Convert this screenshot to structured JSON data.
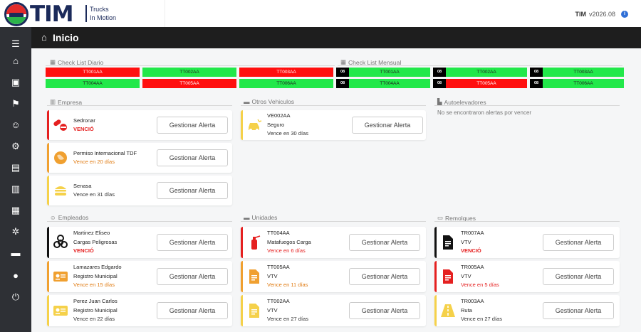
{
  "brand": {
    "logo_text": "TIM",
    "sub_line1": "Trucks",
    "sub_line2": "In Motion"
  },
  "topbar": {
    "user": "TIM",
    "version": "v2026.08",
    "info_icon": "i"
  },
  "header": {
    "title": "Inicio",
    "home_icon": "home-icon"
  },
  "sidebar": {
    "icons": [
      "menu-icon",
      "home-icon",
      "bus-icon",
      "flag-icon",
      "users-icon",
      "user-cog-icon",
      "file-icon",
      "basket-icon",
      "boxes-icon",
      "cogs-icon",
      "folder-icon",
      "user-icon",
      "power-icon"
    ],
    "glyphs": [
      "☰",
      "⌂",
      "▣",
      "⚑",
      "☺",
      "⚙",
      "▤",
      "▥",
      "▦",
      "✲",
      "▬",
      "●",
      "⏻"
    ]
  },
  "checklist_diario": {
    "label": "Check List Diario",
    "items": [
      {
        "code": "TT001AA",
        "status": "red"
      },
      {
        "code": "TT002AA",
        "status": "green"
      },
      {
        "code": "TT003AA",
        "status": "red"
      },
      {
        "code": "TT004AA",
        "status": "green"
      },
      {
        "code": "TT005AA",
        "status": "red"
      },
      {
        "code": "TT006AA",
        "status": "green"
      }
    ]
  },
  "checklist_mensual": {
    "label": "Check List Mensual",
    "items": [
      {
        "num": "08",
        "code": "TT001AA",
        "status": "green"
      },
      {
        "num": "08",
        "code": "TT002AA",
        "status": "green"
      },
      {
        "num": "08",
        "code": "TT003AA",
        "status": "green"
      },
      {
        "num": "08",
        "code": "TT004AA",
        "status": "green"
      },
      {
        "num": "08",
        "code": "TT005AA",
        "status": "red"
      },
      {
        "num": "08",
        "code": "TT006AA",
        "status": "green"
      }
    ]
  },
  "sections": {
    "empresa": "Empresa",
    "otros": "Otros Vehiculos",
    "autoelevadores": "Autoelevadores",
    "autoelevadores_empty": "No se encontraron alertas por vencer",
    "empleados": "Empleados",
    "unidades": "Unidades",
    "remolques": "Remolques"
  },
  "button_label": "Gestionar Alerta",
  "empresa_cards": [
    {
      "line1": "Sedronar",
      "line2": "",
      "status": "VENCIÓ",
      "status_type": "red",
      "icon": "pill-icon",
      "accent": "#e52020"
    },
    {
      "line1": "Permiso Internacional TDF",
      "line2": "",
      "status": "Vence en 20 días",
      "status_type": "orange",
      "icon": "globe-icon",
      "accent": "#f0a030"
    },
    {
      "line1": "Senasa",
      "line2": "",
      "status": "Vence en 31 días",
      "status_type": "norm",
      "icon": "burger-icon",
      "accent": "#f5d14a"
    }
  ],
  "otros_cards": [
    {
      "line1": "VE002AA",
      "line2": "Seguro",
      "status": "Vence en 30 días",
      "status_type": "norm",
      "icon": "car-crash-icon",
      "accent": "#f5d14a"
    }
  ],
  "empleados_cards": [
    {
      "line1": "Martinez Eliseo",
      "line2": "Cargas Peligrosas",
      "status": "VENCIÓ",
      "status_type": "red",
      "icon": "biohazard-icon",
      "accent": "#111111"
    },
    {
      "line1": "Lamazares Edgardo",
      "line2": "Registro Municipal",
      "status": "Vence en 15 días",
      "status_type": "orange",
      "icon": "id-card-icon",
      "accent": "#f0a030"
    },
    {
      "line1": "Perez Juan Carlos",
      "line2": "Registro Municipal",
      "status": "Vence en 22 días",
      "status_type": "norm",
      "icon": "id-card-icon",
      "accent": "#f5d14a"
    }
  ],
  "unidades_cards": [
    {
      "line1": "TT004AA",
      "line2": "Matafuegos Carga",
      "status": "Vence en 6 días",
      "status_type": "redt",
      "icon": "extinguisher-icon",
      "accent": "#e52020"
    },
    {
      "line1": "TT005AA",
      "line2": "VTV",
      "status": "Vence en 11 días",
      "status_type": "orange",
      "icon": "document-icon",
      "accent": "#f0a030"
    },
    {
      "line1": "TT002AA",
      "line2": "VTV",
      "status": "Vence en 27 días",
      "status_type": "norm",
      "icon": "document-icon",
      "accent": "#f5d14a"
    }
  ],
  "remolques_cards": [
    {
      "line1": "TR007AA",
      "line2": "VTV",
      "status": "VENCIÓ",
      "status_type": "red",
      "icon": "document-icon",
      "accent": "#111111"
    },
    {
      "line1": "TR005AA",
      "line2": "VTV",
      "status": "Vence en 5 días",
      "status_type": "redt",
      "icon": "document-icon",
      "accent": "#e52020"
    },
    {
      "line1": "TR003AA",
      "line2": "Ruta",
      "status": "Vence en 27 días",
      "status_type": "norm",
      "icon": "road-icon",
      "accent": "#f5d14a"
    }
  ]
}
